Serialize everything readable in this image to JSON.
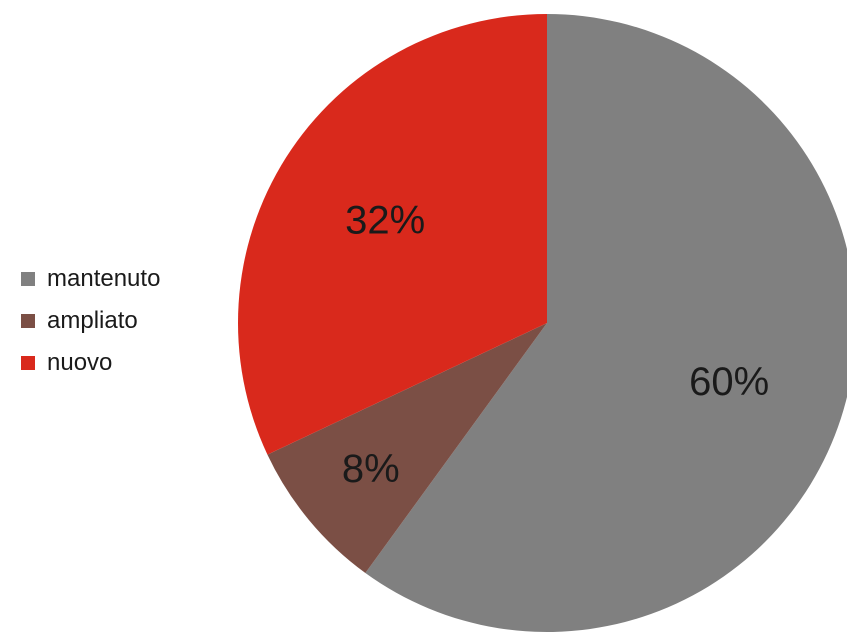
{
  "chart_data": {
    "type": "pie",
    "categories": [
      "mantenuto",
      "ampliato",
      "nuovo"
    ],
    "values": [
      60,
      8,
      32
    ],
    "labels": [
      "60%",
      "8%",
      "32%"
    ],
    "colors": [
      "#808080",
      "#7b4f45",
      "#d9291c"
    ],
    "start_angle_deg": 0,
    "direction": "clockwise",
    "legend_position": "left"
  }
}
